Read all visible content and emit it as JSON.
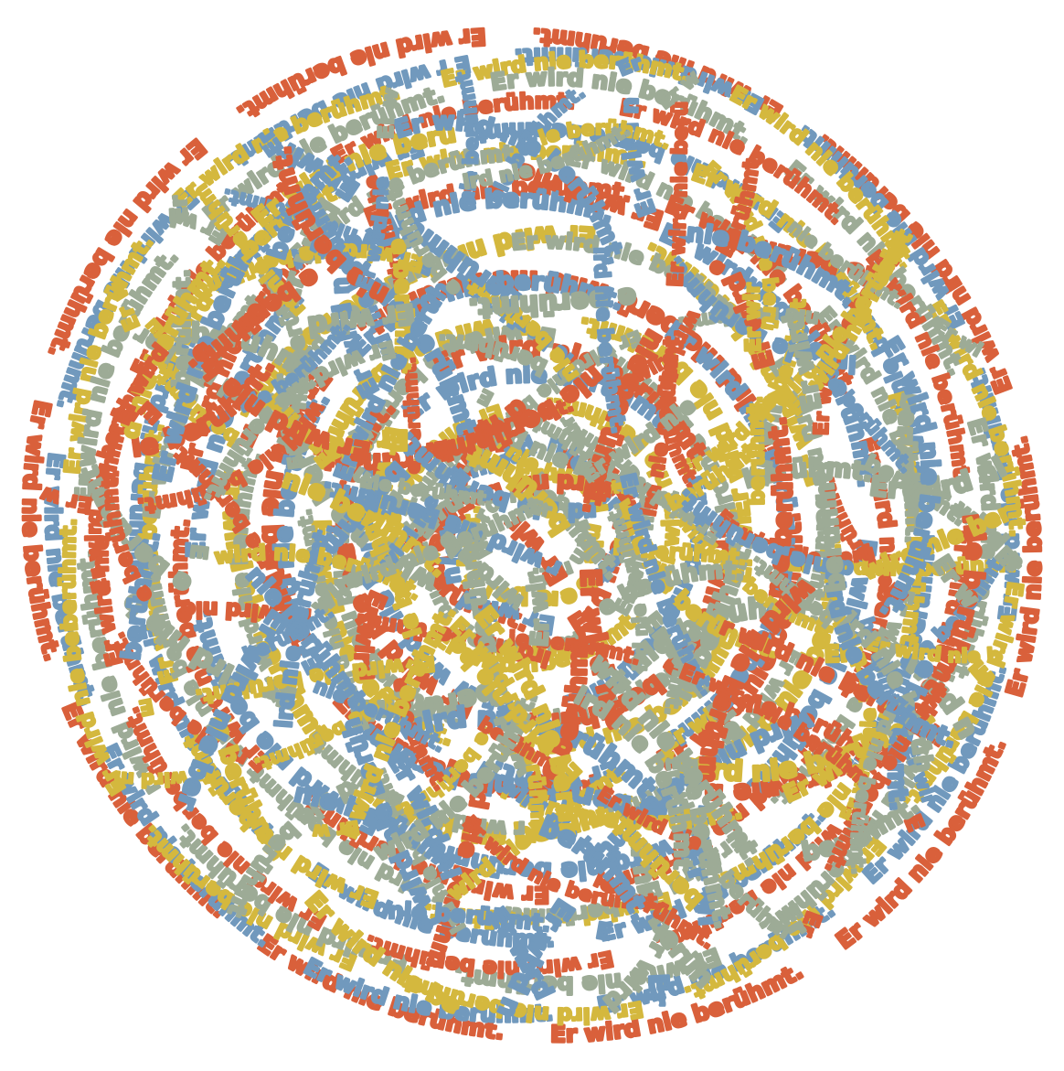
{
  "phrase": "Er wird nie berühmt.",
  "colors": [
    "#d9603b",
    "#7199bd",
    "#d4b83e",
    "#9dab96"
  ]
}
